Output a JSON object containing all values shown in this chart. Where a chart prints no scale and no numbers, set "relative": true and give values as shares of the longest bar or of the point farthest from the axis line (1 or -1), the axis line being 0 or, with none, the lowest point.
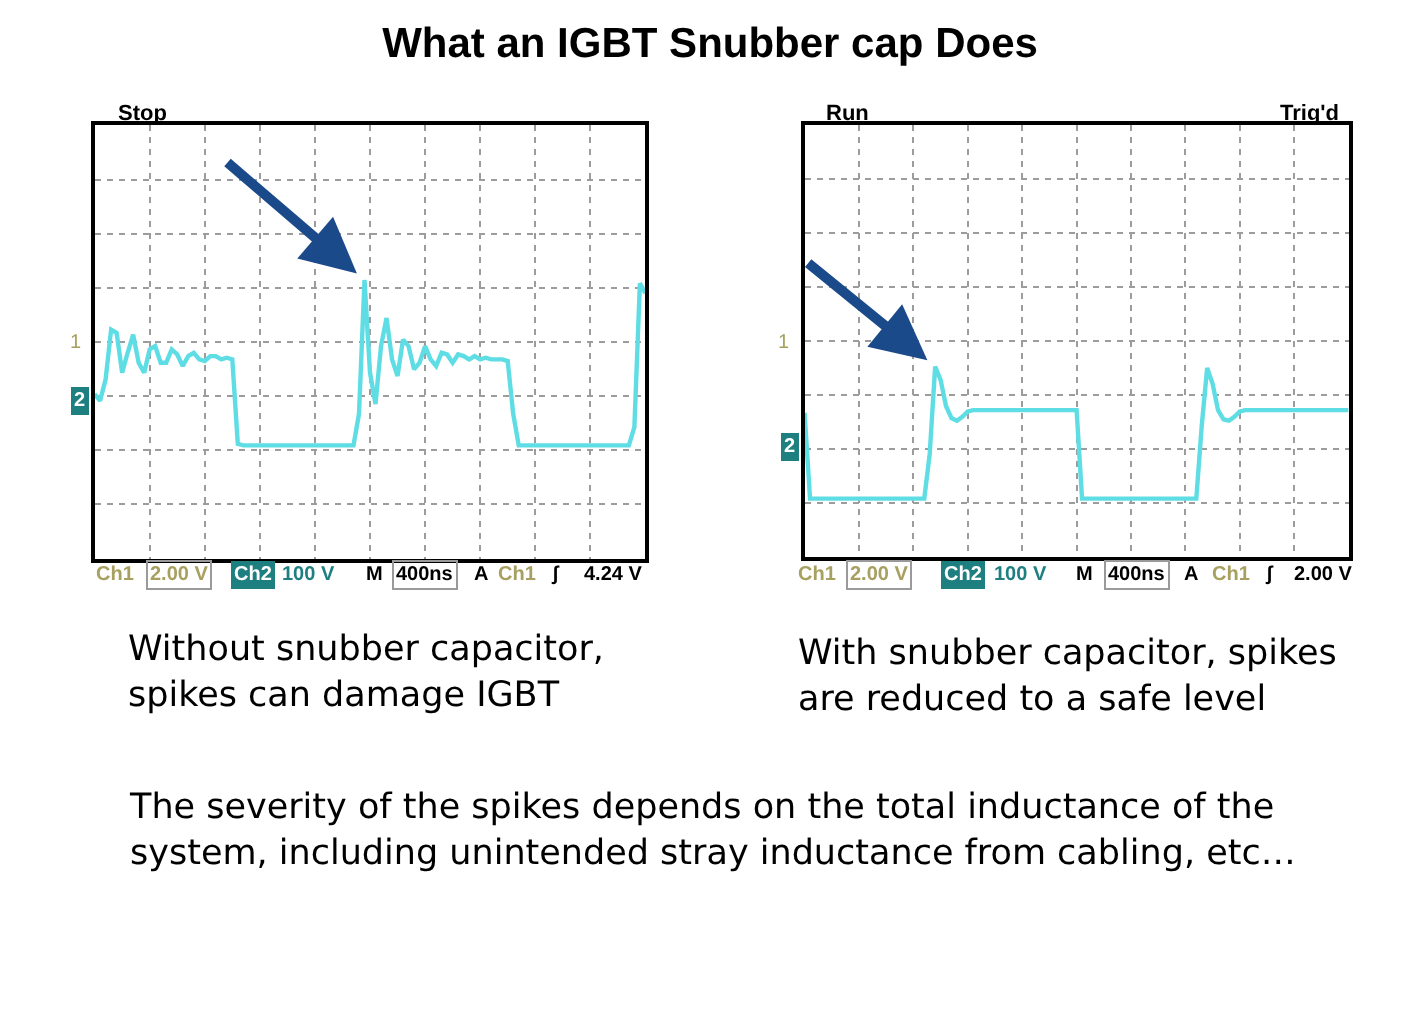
{
  "chart_data": [
    {
      "type": "line",
      "title": "What an IGBT Snubber cap Does",
      "relative": true,
      "grid": true,
      "categories": [
        null,
        null,
        null,
        null,
        null,
        null,
        null,
        null,
        null,
        null,
        null,
        null,
        null,
        null,
        null,
        null,
        null,
        null,
        null,
        null,
        null,
        null,
        null,
        null,
        null,
        null,
        null,
        null,
        null,
        null,
        null,
        null,
        null,
        null,
        null,
        null,
        null,
        null,
        null,
        null,
        null,
        null,
        null,
        null,
        null,
        null,
        null,
        null,
        null,
        null,
        null,
        null,
        null,
        null,
        null,
        null,
        null,
        null,
        null,
        null,
        null,
        null,
        null,
        null,
        null,
        null,
        null,
        null,
        null,
        null,
        null,
        null,
        null,
        null,
        null,
        null,
        null,
        null,
        null,
        null,
        null,
        null,
        null,
        null,
        null,
        null,
        null,
        null,
        null,
        null,
        null,
        null,
        null,
        null,
        null,
        null,
        null,
        null,
        null,
        null,
        null
      ],
      "series": [
        {
          "color": "#5fdde5",
          "values": [
            0.31,
            0.27,
            0.4,
            0.7,
            0.68,
            0.44,
            0.56,
            0.67,
            0.5,
            0.44,
            0.58,
            0.6,
            0.5,
            0.5,
            0.58,
            0.55,
            0.48,
            0.54,
            0.56,
            0.52,
            0.51,
            0.54,
            0.54,
            0.52,
            0.53,
            0.52,
            0.01,
            0,
            0,
            0,
            0,
            0,
            0,
            0,
            0,
            0,
            0,
            0,
            0,
            0,
            0,
            0,
            0,
            0,
            0,
            0,
            0,
            0,
            0.19,
            1.0,
            0.44,
            0.25,
            0.6,
            0.77,
            0.52,
            0.42,
            0.64,
            0.6,
            0.46,
            0.5,
            0.6,
            0.52,
            0.48,
            0.56,
            0.55,
            0.5,
            0.55,
            0.54,
            0.52,
            0.54,
            0.52,
            0.53,
            0.52,
            0.52,
            0.52,
            0.51,
            0.19,
            0,
            0,
            0,
            0,
            0,
            0,
            0,
            0,
            0,
            0,
            0,
            0,
            0,
            0,
            0,
            0,
            0,
            0,
            0,
            0,
            0,
            0.11,
            0.98,
            0.92
          ]
        }
      ],
      "annotations": [
        "Stop",
        "1",
        "2",
        "Ch1",
        "2.00 V",
        "Ch2",
        "100 V",
        "M",
        "400ns",
        "A",
        "Ch1",
        "ʃ",
        "4.24 V",
        "Without snubber capacitor,\nspikes can damage IGBT"
      ]
    },
    {
      "type": "line",
      "relative": true,
      "grid": true,
      "categories": [
        null,
        null,
        null,
        null,
        null,
        null,
        null,
        null,
        null,
        null,
        null,
        null,
        null,
        null,
        null,
        null,
        null,
        null,
        null,
        null,
        null,
        null,
        null,
        null,
        null,
        null,
        null,
        null,
        null,
        null,
        null,
        null,
        null,
        null,
        null,
        null,
        null,
        null,
        null,
        null,
        null,
        null,
        null,
        null,
        null,
        null,
        null,
        null,
        null,
        null,
        null,
        null,
        null,
        null,
        null,
        null,
        null,
        null,
        null,
        null,
        null,
        null,
        null,
        null,
        null,
        null,
        null,
        null,
        null,
        null,
        null,
        null,
        null,
        null,
        null,
        null,
        null,
        null,
        null,
        null,
        null,
        null,
        null,
        null,
        null,
        null,
        null,
        null,
        null,
        null,
        null,
        null,
        null,
        null,
        null,
        null,
        null,
        null,
        null,
        null,
        null
      ],
      "series": [
        {
          "color": "#5fdde5",
          "values": [
            0.65,
            0,
            0,
            0,
            0,
            0,
            0,
            0,
            0,
            0,
            0,
            0,
            0,
            0,
            0,
            0,
            0,
            0,
            0,
            0,
            0,
            0,
            0,
            0.34,
            1.0,
            0.9,
            0.7,
            0.61,
            0.59,
            0.62,
            0.66,
            0.67,
            0.67,
            0.67,
            0.67,
            0.67,
            0.67,
            0.67,
            0.67,
            0.67,
            0.67,
            0.67,
            0.67,
            0.67,
            0.67,
            0.67,
            0.67,
            0.67,
            0.67,
            0.67,
            0.67,
            0,
            0,
            0,
            0,
            0,
            0,
            0,
            0,
            0,
            0,
            0,
            0,
            0,
            0,
            0,
            0,
            0,
            0,
            0,
            0,
            0,
            0,
            0.55,
            0.99,
            0.87,
            0.67,
            0.6,
            0.59,
            0.62,
            0.66,
            0.67,
            0.67,
            0.67,
            0.67,
            0.67,
            0.67,
            0.67,
            0.67,
            0.67,
            0.67,
            0.67,
            0.67,
            0.67,
            0.67,
            0.67,
            0.67,
            0.67,
            0.67,
            0.67,
            0.67
          ]
        }
      ],
      "annotations": [
        "Run",
        "Trig'd",
        "1",
        "2",
        "Ch1",
        "2.00 V",
        "Ch2",
        "100 V",
        "M",
        "400ns",
        "A",
        "Ch1",
        "ʃ",
        "2.00 V",
        "With snubber capacitor, spikes\nare reduced to a safe level"
      ]
    },
    {
      "type": "other",
      "annotations": [
        "The severity of the spikes depends on the total inductance of the\nsystem, including unintended stray inductance from cabling, etc…"
      ]
    }
  ]
}
